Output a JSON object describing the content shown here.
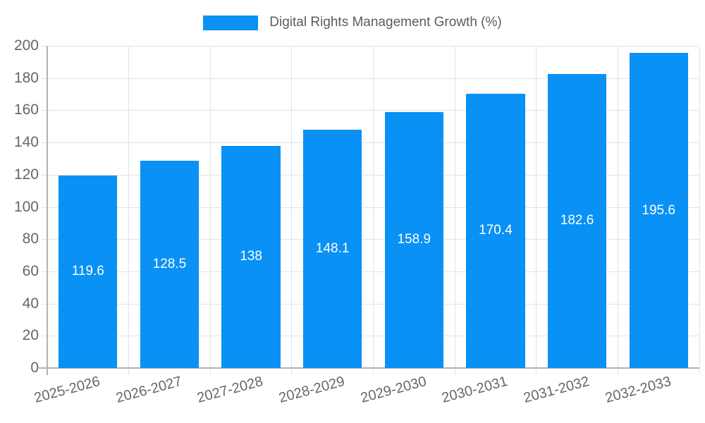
{
  "chart_data": {
    "type": "bar",
    "title": "Digital Rights Management Growth (%)",
    "legend": {
      "label": "Digital Rights Management Growth (%)",
      "position": "top-center"
    },
    "categories": [
      "2025-2026",
      "2026-2027",
      "2027-2028",
      "2028-2029",
      "2029-2030",
      "2030-2031",
      "2031-2032",
      "2032-2033"
    ],
    "series": [
      {
        "name": "Digital Rights Management Growth (%)",
        "values": [
          119.6,
          128.5,
          138,
          148.1,
          158.9,
          170.4,
          182.6,
          195.6
        ],
        "value_labels": [
          "119.6",
          "128.5",
          "138",
          "148.1",
          "158.9",
          "170.4",
          "182.6",
          "195.6"
        ]
      }
    ],
    "xlabel": "",
    "ylabel": "",
    "ylim": [
      0,
      200
    ],
    "y_ticks": [
      0,
      20,
      40,
      60,
      80,
      100,
      120,
      140,
      160,
      180,
      200
    ],
    "grid": true,
    "colors": {
      "bar": "#0991f5",
      "gridline": "#e3e3e3",
      "axis": "#b3b3b3",
      "tick_text": "#666666",
      "legend_text": "#5c5c5c",
      "value_text": "#ffffff"
    }
  }
}
